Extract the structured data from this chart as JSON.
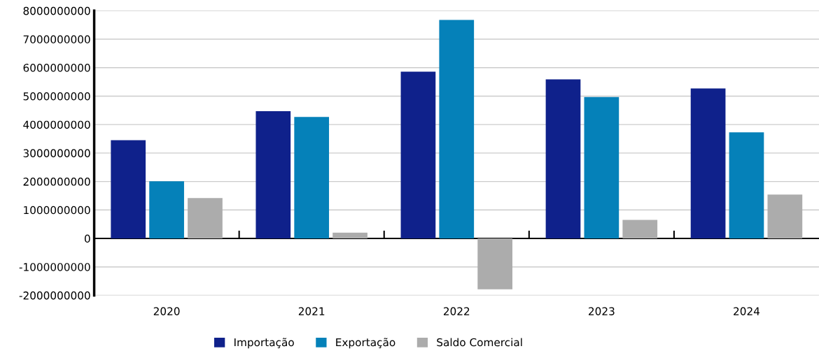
{
  "chart_data": {
    "type": "bar",
    "categories": [
      "2020",
      "2021",
      "2022",
      "2023",
      "2024"
    ],
    "series": [
      {
        "name": "Importação",
        "color": "#0f218b",
        "values": [
          3450000000,
          4470000000,
          5860000000,
          5590000000,
          5270000000
        ]
      },
      {
        "name": "Exportação",
        "color": "#0581b9",
        "values": [
          2010000000,
          4270000000,
          7680000000,
          4970000000,
          3730000000
        ]
      },
      {
        "name": "Saldo Comercial",
        "color": "#acacac",
        "values": [
          1420000000,
          200000000,
          -1790000000,
          650000000,
          1540000000
        ]
      }
    ],
    "ylim": [
      -2000000000,
      8000000000
    ],
    "yticks": [
      -2000000000,
      -1000000000,
      0,
      1000000000,
      2000000000,
      3000000000,
      4000000000,
      5000000000,
      6000000000,
      7000000000,
      8000000000
    ],
    "grid": "y",
    "legend": "bottom"
  }
}
